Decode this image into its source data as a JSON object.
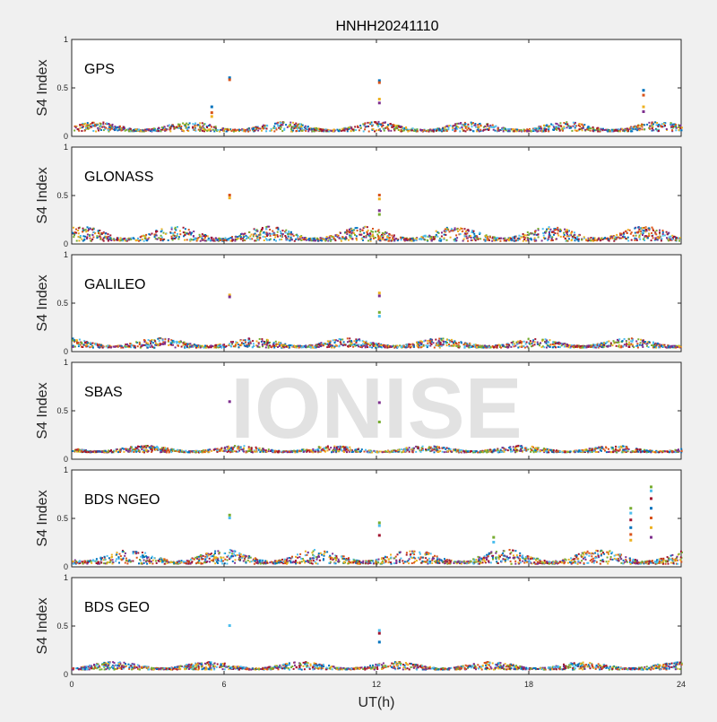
{
  "window": {
    "title": "HNHH20241110"
  },
  "watermark": "IONISE",
  "colors": {
    "background": "#f0f0f0",
    "axes": "#ffffff",
    "series": [
      "#0072bd",
      "#d95319",
      "#edb120",
      "#7e2f8e",
      "#77ac30",
      "#4dbeee",
      "#a2142f"
    ]
  },
  "chart_data": {
    "type": "scatter",
    "title": "HNHH20241110",
    "xlabel": "UT(h)",
    "ylabel": "S4 Index",
    "xlim": [
      0,
      24
    ],
    "ylim": [
      0,
      1
    ],
    "xticks": [
      0,
      6,
      12,
      18,
      24
    ],
    "yticks": [
      0,
      0.5,
      1
    ],
    "xtick_labels": [
      "0",
      "6",
      "12",
      "18",
      "24"
    ],
    "ytick_labels": [
      "0",
      "0.5",
      "1"
    ],
    "grid": false,
    "panels": [
      {
        "name": "GPS",
        "baseline_range": [
          0.05,
          0.15
        ],
        "spikes": [
          {
            "x": 6.2,
            "y": [
              0.6,
              0.58
            ]
          },
          {
            "x": 12.1,
            "y": [
              0.57,
              0.55,
              0.38,
              0.34
            ]
          },
          {
            "x": 22.5,
            "y": [
              0.47,
              0.42,
              0.3,
              0.25
            ]
          },
          {
            "x": 5.5,
            "y": [
              0.3,
              0.24,
              0.2
            ]
          }
        ]
      },
      {
        "name": "GLONASS",
        "baseline_range": [
          0.03,
          0.18
        ],
        "spikes": [
          {
            "x": 6.2,
            "y": [
              0.5,
              0.47
            ]
          },
          {
            "x": 12.1,
            "y": [
              0.5,
              0.46,
              0.34,
              0.3
            ]
          }
        ]
      },
      {
        "name": "GALILEO",
        "baseline_range": [
          0.04,
          0.14
        ],
        "spikes": [
          {
            "x": 6.2,
            "y": [
              0.58,
              0.56
            ]
          },
          {
            "x": 12.1,
            "y": [
              0.6,
              0.57,
              0.4,
              0.36
            ]
          }
        ]
      },
      {
        "name": "SBAS",
        "baseline_range": [
          0.07,
          0.14
        ],
        "spikes": [
          {
            "x": 6.2,
            "y": [
              0.59
            ]
          },
          {
            "x": 12.1,
            "y": [
              0.58,
              0.38
            ]
          }
        ]
      },
      {
        "name": "BDS NGEO",
        "baseline_range": [
          0.03,
          0.18
        ],
        "spikes": [
          {
            "x": 6.2,
            "y": [
              0.53,
              0.5
            ]
          },
          {
            "x": 12.1,
            "y": [
              0.45,
              0.42,
              0.32
            ]
          },
          {
            "x": 22.0,
            "y": [
              0.6,
              0.55,
              0.48,
              0.4,
              0.33,
              0.27
            ]
          },
          {
            "x": 22.8,
            "y": [
              0.82,
              0.78,
              0.7,
              0.6,
              0.5,
              0.4,
              0.3
            ]
          },
          {
            "x": 16.6,
            "y": [
              0.3,
              0.25
            ]
          }
        ]
      },
      {
        "name": "BDS GEO",
        "baseline_range": [
          0.05,
          0.13
        ],
        "spikes": [
          {
            "x": 6.2,
            "y": [
              0.5
            ]
          },
          {
            "x": 12.1,
            "y": [
              0.45,
              0.42,
              0.33
            ]
          }
        ]
      }
    ]
  }
}
